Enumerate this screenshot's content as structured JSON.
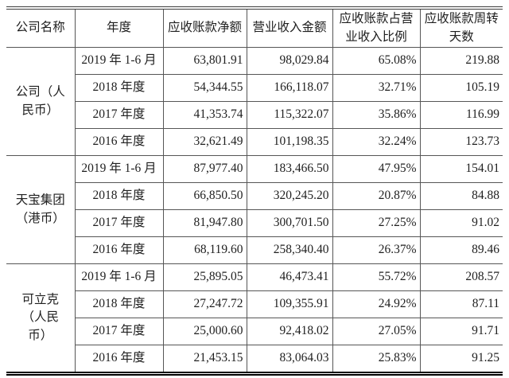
{
  "page": {
    "background": "#ffffff",
    "text_color": "#1f1f1f",
    "grid_line_color": "#565656"
  },
  "table": {
    "columns": [
      {
        "key": "company",
        "label": "公司名称"
      },
      {
        "key": "period",
        "label": "年度"
      },
      {
        "key": "receivables",
        "label": "应收账款净额"
      },
      {
        "key": "revenue",
        "label": "营业收入金额"
      },
      {
        "key": "ratio",
        "label": "应收账款占营\n业收入比例"
      },
      {
        "key": "days",
        "label": "应收账款周转\n天数"
      }
    ],
    "groups": [
      {
        "company": "公司（人\n民币）",
        "rows": [
          {
            "period": "2019 年 1-6 月",
            "receivables": "63,801.91",
            "revenue": "98,029.84",
            "ratio": "65.08%",
            "days": "219.88"
          },
          {
            "period": "2018 年度",
            "receivables": "54,344.55",
            "revenue": "166,118.07",
            "ratio": "32.71%",
            "days": "105.19"
          },
          {
            "period": "2017 年度",
            "receivables": "41,353.74",
            "revenue": "115,322.07",
            "ratio": "35.86%",
            "days": "116.99"
          },
          {
            "period": "2016 年度",
            "receivables": "32,621.49",
            "revenue": "101,198.35",
            "ratio": "32.24%",
            "days": "123.73"
          }
        ]
      },
      {
        "company": "天宝集团\n（港币）",
        "rows": [
          {
            "period": "2019 年 1-6 月",
            "receivables": "87,977.40",
            "revenue": "183,466.50",
            "ratio": "47.95%",
            "days": "154.01"
          },
          {
            "period": "2018 年度",
            "receivables": "66,850.50",
            "revenue": "320,245.20",
            "ratio": "20.87%",
            "days": "84.88"
          },
          {
            "period": "2017 年度",
            "receivables": "81,947.80",
            "revenue": "300,701.50",
            "ratio": "27.25%",
            "days": "91.02"
          },
          {
            "period": "2016 年度",
            "receivables": "68,119.60",
            "revenue": "258,340.40",
            "ratio": "26.37%",
            "days": "89.46"
          }
        ]
      },
      {
        "company": "可立克\n（人民\n币）",
        "rows": [
          {
            "period": "2019 年 1-6 月",
            "receivables": "25,895.05",
            "revenue": "46,473.41",
            "ratio": "55.72%",
            "days": "208.57"
          },
          {
            "period": "2018 年度",
            "receivables": "27,247.72",
            "revenue": "109,355.91",
            "ratio": "24.92%",
            "days": "87.11"
          },
          {
            "period": "2017 年度",
            "receivables": "25,000.60",
            "revenue": "92,418.02",
            "ratio": "27.05%",
            "days": "91.71"
          },
          {
            "period": "2016 年度",
            "receivables": "21,453.15",
            "revenue": "83,064.03",
            "ratio": "25.83%",
            "days": "91.25"
          }
        ]
      }
    ]
  }
}
